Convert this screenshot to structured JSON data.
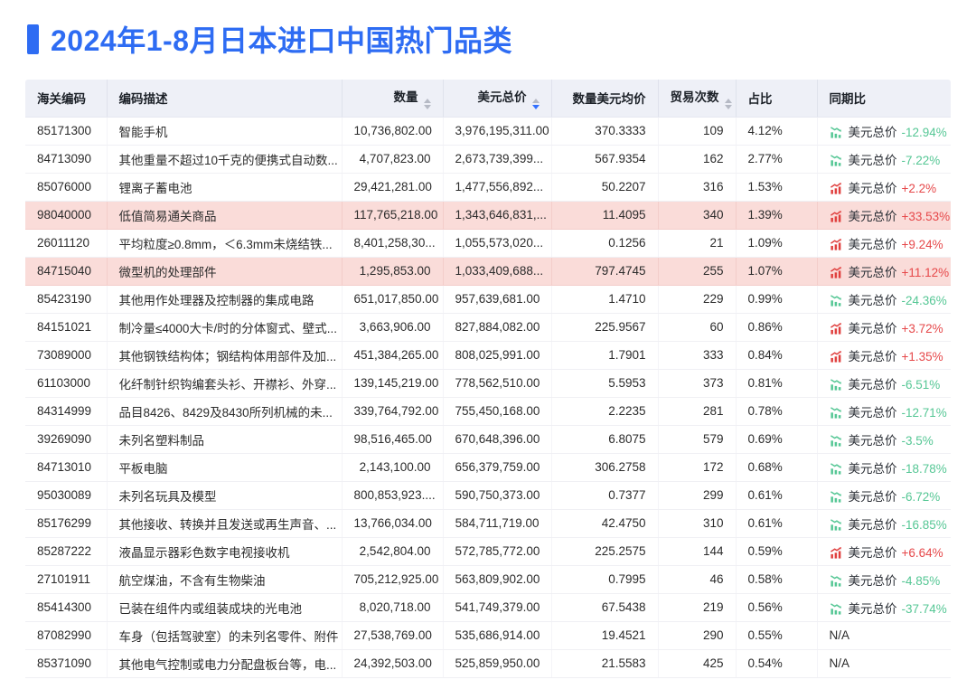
{
  "title": "2024年1-8月日本进口中国热门品类",
  "colors": {
    "accent_blue": "#2e6cf3",
    "sort_active_blue": "#3370ff",
    "header_bg": "#eef0f7",
    "highlight_row_bg": "#fadcd9",
    "positive_red": "#e0403f",
    "negative_green": "#56c795"
  },
  "table": {
    "yoy_metric_label": "美元总价",
    "columns": [
      {
        "key": "code",
        "label": "海关编码",
        "align": "left",
        "sortable": false,
        "sort": "none"
      },
      {
        "key": "desc",
        "label": "编码描述",
        "align": "left",
        "sortable": false,
        "sort": "none"
      },
      {
        "key": "qty",
        "label": "数量",
        "align": "right",
        "sortable": true,
        "sort": "none"
      },
      {
        "key": "usd",
        "label": "美元总价",
        "align": "right",
        "sortable": true,
        "sort": "desc"
      },
      {
        "key": "avg",
        "label": "数量美元均价",
        "align": "right",
        "sortable": false,
        "sort": "none"
      },
      {
        "key": "trades",
        "label": "贸易次数",
        "align": "right",
        "sortable": true,
        "sort": "none"
      },
      {
        "key": "share",
        "label": "占比",
        "align": "left",
        "sortable": false,
        "sort": "none"
      },
      {
        "key": "yoy",
        "label": "同期比",
        "align": "left",
        "sortable": false,
        "sort": "none"
      }
    ],
    "rows": [
      {
        "code": "85171300",
        "desc": "智能手机",
        "qty": "10,736,802.00",
        "usd": "3,976,195,311.00",
        "avg": "370.3333",
        "trades": "109",
        "share": "4.12%",
        "highlight": false,
        "yoy": {
          "trend": "down",
          "value": "-12.94%"
        }
      },
      {
        "code": "84713090",
        "desc": "其他重量不超过10千克的便携式自动数...",
        "qty": "4,707,823.00",
        "usd": "2,673,739,399...",
        "avg": "567.9354",
        "trades": "162",
        "share": "2.77%",
        "highlight": false,
        "yoy": {
          "trend": "down",
          "value": "-7.22%"
        }
      },
      {
        "code": "85076000",
        "desc": "锂离子蓄电池",
        "qty": "29,421,281.00",
        "usd": "1,477,556,892...",
        "avg": "50.2207",
        "trades": "316",
        "share": "1.53%",
        "highlight": false,
        "yoy": {
          "trend": "up",
          "value": "+2.2%"
        }
      },
      {
        "code": "98040000",
        "desc": "低值简易通关商品",
        "qty": "117,765,218.00",
        "usd": "1,343,646,831,...",
        "avg": "11.4095",
        "trades": "340",
        "share": "1.39%",
        "highlight": true,
        "yoy": {
          "trend": "up",
          "value": "+33.53%"
        }
      },
      {
        "code": "26011120",
        "desc": "平均粒度≥0.8mm，＜6.3mm未烧结铁...",
        "qty": "8,401,258,30...",
        "usd": "1,055,573,020...",
        "avg": "0.1256",
        "trades": "21",
        "share": "1.09%",
        "highlight": false,
        "yoy": {
          "trend": "up",
          "value": "+9.24%"
        }
      },
      {
        "code": "84715040",
        "desc": "微型机的处理部件",
        "qty": "1,295,853.00",
        "usd": "1,033,409,688...",
        "avg": "797.4745",
        "trades": "255",
        "share": "1.07%",
        "highlight": true,
        "yoy": {
          "trend": "up",
          "value": "+11.12%"
        }
      },
      {
        "code": "85423190",
        "desc": "其他用作处理器及控制器的集成电路",
        "qty": "651,017,850.00",
        "usd": "957,639,681.00",
        "avg": "1.4710",
        "trades": "229",
        "share": "0.99%",
        "highlight": false,
        "yoy": {
          "trend": "down",
          "value": "-24.36%"
        }
      },
      {
        "code": "84151021",
        "desc": "制冷量≤4000大卡/时的分体窗式、壁式...",
        "qty": "3,663,906.00",
        "usd": "827,884,082.00",
        "avg": "225.9567",
        "trades": "60",
        "share": "0.86%",
        "highlight": false,
        "yoy": {
          "trend": "up",
          "value": "+3.72%"
        }
      },
      {
        "code": "73089000",
        "desc": "其他钢铁结构体；钢结构体用部件及加...",
        "qty": "451,384,265.00",
        "usd": "808,025,991.00",
        "avg": "1.7901",
        "trades": "333",
        "share": "0.84%",
        "highlight": false,
        "yoy": {
          "trend": "up",
          "value": "+1.35%"
        }
      },
      {
        "code": "61103000",
        "desc": "化纤制针织钩编套头衫、开襟衫、外穿...",
        "qty": "139,145,219.00",
        "usd": "778,562,510.00",
        "avg": "5.5953",
        "trades": "373",
        "share": "0.81%",
        "highlight": false,
        "yoy": {
          "trend": "down",
          "value": "-6.51%"
        }
      },
      {
        "code": "84314999",
        "desc": "品目8426、8429及8430所列机械的未...",
        "qty": "339,764,792.00",
        "usd": "755,450,168.00",
        "avg": "2.2235",
        "trades": "281",
        "share": "0.78%",
        "highlight": false,
        "yoy": {
          "trend": "down",
          "value": "-12.71%"
        }
      },
      {
        "code": "39269090",
        "desc": "未列名塑料制品",
        "qty": "98,516,465.00",
        "usd": "670,648,396.00",
        "avg": "6.8075",
        "trades": "579",
        "share": "0.69%",
        "highlight": false,
        "yoy": {
          "trend": "down",
          "value": "-3.5%"
        }
      },
      {
        "code": "84713010",
        "desc": "平板电脑",
        "qty": "2,143,100.00",
        "usd": "656,379,759.00",
        "avg": "306.2758",
        "trades": "172",
        "share": "0.68%",
        "highlight": false,
        "yoy": {
          "trend": "down",
          "value": "-18.78%"
        }
      },
      {
        "code": "95030089",
        "desc": "未列名玩具及模型",
        "qty": "800,853,923....",
        "usd": "590,750,373.00",
        "avg": "0.7377",
        "trades": "299",
        "share": "0.61%",
        "highlight": false,
        "yoy": {
          "trend": "down",
          "value": "-6.72%"
        }
      },
      {
        "code": "85176299",
        "desc": "其他接收、转换并且发送或再生声音、...",
        "qty": "13,766,034.00",
        "usd": "584,711,719.00",
        "avg": "42.4750",
        "trades": "310",
        "share": "0.61%",
        "highlight": false,
        "yoy": {
          "trend": "down",
          "value": "-16.85%"
        }
      },
      {
        "code": "85287222",
        "desc": "液晶显示器彩色数字电视接收机",
        "qty": "2,542,804.00",
        "usd": "572,785,772.00",
        "avg": "225.2575",
        "trades": "144",
        "share": "0.59%",
        "highlight": false,
        "yoy": {
          "trend": "up",
          "value": "+6.64%"
        }
      },
      {
        "code": "27101911",
        "desc": "航空煤油，不含有生物柴油",
        "qty": "705,212,925.00",
        "usd": "563,809,902.00",
        "avg": "0.7995",
        "trades": "46",
        "share": "0.58%",
        "highlight": false,
        "yoy": {
          "trend": "down",
          "value": "-4.85%"
        }
      },
      {
        "code": "85414300",
        "desc": "已装在组件内或组装成块的光电池",
        "qty": "8,020,718.00",
        "usd": "541,749,379.00",
        "avg": "67.5438",
        "trades": "219",
        "share": "0.56%",
        "highlight": false,
        "yoy": {
          "trend": "down",
          "value": "-37.74%"
        }
      },
      {
        "code": "87082990",
        "desc": "车身（包括驾驶室）的未列名零件、附件",
        "qty": "27,538,769.00",
        "usd": "535,686,914.00",
        "avg": "19.4521",
        "trades": "290",
        "share": "0.55%",
        "highlight": false,
        "yoy": {
          "trend": "na",
          "value": "N/A"
        }
      },
      {
        "code": "85371090",
        "desc": "其他电气控制或电力分配盘板台等，电...",
        "qty": "24,392,503.00",
        "usd": "525,859,950.00",
        "avg": "21.5583",
        "trades": "425",
        "share": "0.54%",
        "highlight": false,
        "yoy": {
          "trend": "na",
          "value": "N/A"
        }
      }
    ]
  }
}
